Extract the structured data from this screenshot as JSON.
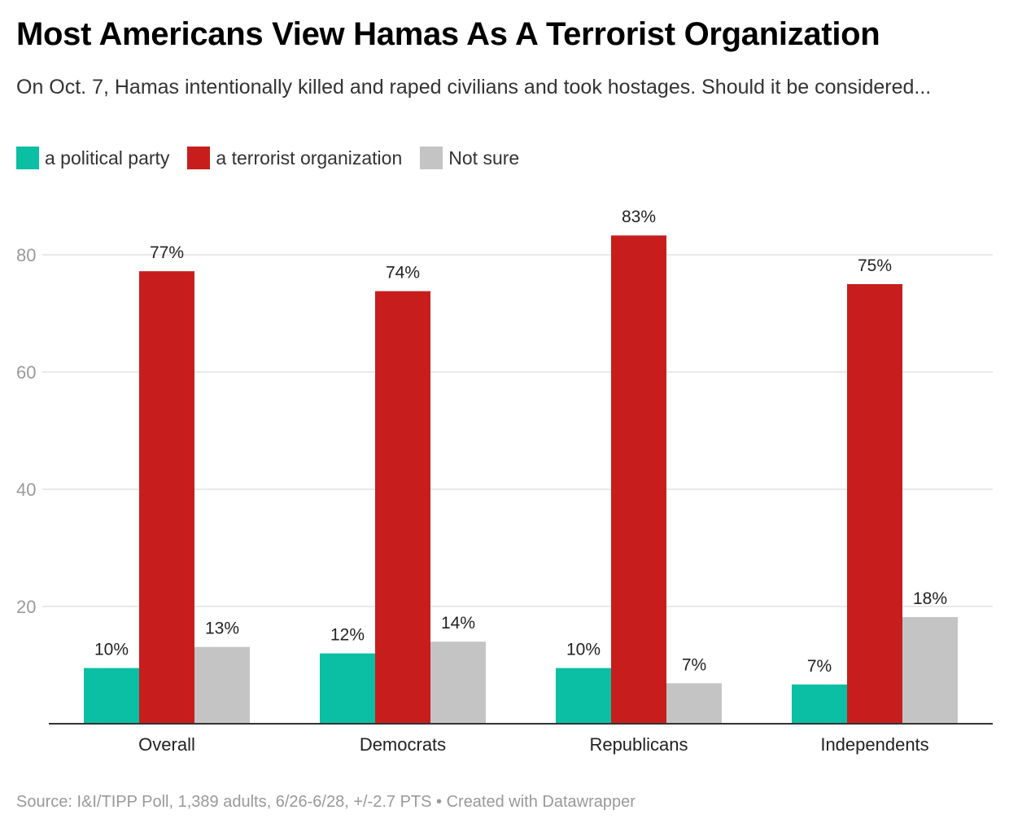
{
  "title": "Most Americans View Hamas As A Terrorist Organization",
  "subtitle": "On Oct. 7, Hamas intentionally killed and raped civilians and took hostages. Should it be considered...",
  "source": "Source: I&I/TIPP Poll, 1,389 adults, 6/26-6/28, +/-2.7 PTS • Created with Datawrapper",
  "chart_data": {
    "type": "bar",
    "categories": [
      "Overall",
      "Democrats",
      "Republicans",
      "Independents"
    ],
    "series": [
      {
        "name": "a political party",
        "color": "#0abfa3",
        "values": [
          9.5,
          12,
          9.5,
          6.7
        ],
        "labels": [
          "10%",
          "12%",
          "10%",
          "7%"
        ]
      },
      {
        "name": "a terrorist organization",
        "color": "#c71e1d",
        "values": [
          77.2,
          73.8,
          83.3,
          75
        ],
        "labels": [
          "77%",
          "74%",
          "83%",
          "75%"
        ]
      },
      {
        "name": "Not sure",
        "color": "#c4c4c4",
        "values": [
          13.1,
          14,
          6.9,
          18.2
        ],
        "labels": [
          "13%",
          "14%",
          "7%",
          "18%"
        ]
      }
    ],
    "yticks": [
      "20",
      "40",
      "60",
      "80"
    ],
    "ylim": [
      0,
      88
    ],
    "grid": true,
    "legend": "top-left",
    "xlabel": "",
    "ylabel": ""
  }
}
